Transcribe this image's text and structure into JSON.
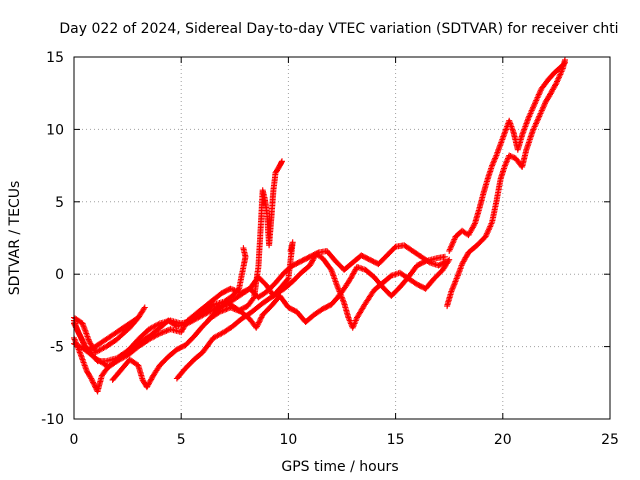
{
  "chart_data": {
    "type": "scatter",
    "title": "Day 022 of 2024, Sidereal Day-to-day VTEC variation (SDTVAR) for receiver chti",
    "xlabel": "GPS time / hours",
    "ylabel": "SDTVAR / TECUs",
    "xlim": [
      0,
      25
    ],
    "ylim": [
      -10,
      15
    ],
    "xticks": [
      0,
      5,
      10,
      15,
      20,
      25
    ],
    "yticks": [
      -10,
      -5,
      0,
      5,
      10,
      15
    ],
    "grid": true,
    "marker": "+",
    "series_color": "#ff0000",
    "traces": [
      {
        "name": "trace-1",
        "points": [
          [
            0.0,
            -3.0
          ],
          [
            0.4,
            -3.4
          ],
          [
            0.7,
            -4.6
          ],
          [
            1.0,
            -5.4
          ],
          [
            1.5,
            -5.0
          ],
          [
            2.0,
            -4.5
          ],
          [
            2.6,
            -3.7
          ],
          [
            3.0,
            -3.0
          ],
          [
            3.3,
            -2.3
          ],
          [
            3.0,
            -3.0
          ],
          [
            2.5,
            -3.5
          ],
          [
            2.0,
            -4.0
          ],
          [
            1.4,
            -4.6
          ],
          [
            1.0,
            -5.0
          ],
          [
            0.6,
            -5.3
          ],
          [
            0.3,
            -4.3
          ],
          [
            0.0,
            -3.4
          ]
        ]
      },
      {
        "name": "trace-2",
        "points": [
          [
            0.0,
            -4.8
          ],
          [
            0.5,
            -5.2
          ],
          [
            1.0,
            -5.8
          ],
          [
            1.6,
            -6.4
          ],
          [
            2.0,
            -6.0
          ],
          [
            2.5,
            -5.3
          ],
          [
            3.0,
            -4.5
          ],
          [
            3.5,
            -3.8
          ],
          [
            4.0,
            -3.4
          ],
          [
            4.5,
            -3.2
          ],
          [
            5.0,
            -3.4
          ],
          [
            5.5,
            -3.2
          ],
          [
            6.0,
            -2.6
          ],
          [
            6.5,
            -2.1
          ],
          [
            7.0,
            -1.9
          ],
          [
            7.4,
            -1.5
          ],
          [
            7.7,
            -1.0
          ],
          [
            7.9,
            0.5
          ],
          [
            8.0,
            1.2
          ],
          [
            7.9,
            1.8
          ]
        ]
      },
      {
        "name": "trace-3",
        "points": [
          [
            0.0,
            -3.2
          ],
          [
            0.2,
            -4.0
          ],
          [
            0.5,
            -4.9
          ],
          [
            0.8,
            -5.5
          ],
          [
            1.1,
            -6.0
          ],
          [
            1.5,
            -6.0
          ],
          [
            2.0,
            -5.8
          ],
          [
            2.5,
            -5.3
          ],
          [
            3.0,
            -4.8
          ],
          [
            3.5,
            -4.3
          ],
          [
            4.0,
            -3.7
          ],
          [
            4.4,
            -3.2
          ],
          [
            4.8,
            -3.6
          ],
          [
            5.3,
            -3.4
          ],
          [
            5.8,
            -3.0
          ],
          [
            6.3,
            -2.6
          ],
          [
            6.8,
            -2.2
          ],
          [
            7.2,
            -2.0
          ],
          [
            7.7,
            -2.5
          ],
          [
            8.1,
            -2.2
          ],
          [
            8.4,
            -1.6
          ],
          [
            8.6,
            0.5
          ],
          [
            8.7,
            3.0
          ],
          [
            8.8,
            5.8
          ],
          [
            8.9,
            5.2
          ],
          [
            9.0,
            4.2
          ],
          [
            9.1,
            2.0
          ],
          [
            9.2,
            3.8
          ],
          [
            9.3,
            5.8
          ],
          [
            9.4,
            7.0
          ],
          [
            9.6,
            7.5
          ],
          [
            9.7,
            7.8
          ]
        ]
      },
      {
        "name": "trace-4",
        "points": [
          [
            0.0,
            -4.4
          ],
          [
            0.3,
            -5.5
          ],
          [
            0.6,
            -6.7
          ],
          [
            0.8,
            -7.2
          ],
          [
            1.1,
            -8.1
          ],
          [
            1.3,
            -7.0
          ],
          [
            1.6,
            -6.4
          ],
          [
            2.0,
            -6.0
          ],
          [
            2.5,
            -5.6
          ],
          [
            3.0,
            -5.0
          ],
          [
            3.5,
            -4.5
          ],
          [
            4.0,
            -4.1
          ],
          [
            4.5,
            -3.8
          ],
          [
            5.0,
            -4.0
          ],
          [
            5.3,
            -3.2
          ],
          [
            5.8,
            -2.6
          ],
          [
            6.3,
            -2.0
          ],
          [
            6.9,
            -1.3
          ],
          [
            7.3,
            -1.0
          ],
          [
            7.8,
            -1.3
          ],
          [
            8.2,
            -1.0
          ],
          [
            8.6,
            -0.2
          ],
          [
            9.0,
            -0.8
          ],
          [
            9.3,
            -1.5
          ],
          [
            9.6,
            -1.0
          ],
          [
            10.0,
            -0.3
          ],
          [
            10.2,
            2.2
          ],
          [
            10.1,
            1.6
          ]
        ]
      },
      {
        "name": "trace-5",
        "points": [
          [
            1.8,
            -7.3
          ],
          [
            2.2,
            -6.6
          ],
          [
            2.6,
            -5.9
          ],
          [
            3.0,
            -6.3
          ],
          [
            3.2,
            -7.3
          ],
          [
            3.4,
            -7.8
          ],
          [
            3.7,
            -7.0
          ],
          [
            4.0,
            -6.3
          ],
          [
            4.4,
            -5.7
          ],
          [
            4.8,
            -5.2
          ],
          [
            5.2,
            -4.9
          ],
          [
            5.6,
            -4.3
          ],
          [
            6.0,
            -3.6
          ],
          [
            6.4,
            -3.0
          ],
          [
            6.8,
            -2.6
          ],
          [
            7.3,
            -2.3
          ],
          [
            7.8,
            -2.6
          ],
          [
            8.2,
            -3.1
          ],
          [
            8.5,
            -3.7
          ],
          [
            8.8,
            -2.8
          ],
          [
            9.2,
            -2.2
          ],
          [
            9.6,
            -1.5
          ],
          [
            10.0,
            -2.3
          ],
          [
            10.4,
            -2.6
          ],
          [
            10.8,
            -3.3
          ],
          [
            11.2,
            -2.8
          ],
          [
            11.6,
            -2.4
          ],
          [
            12.0,
            -2.1
          ],
          [
            12.3,
            -1.6
          ],
          [
            12.6,
            -1.0
          ],
          [
            12.9,
            -0.3
          ],
          [
            13.2,
            0.5
          ],
          [
            13.6,
            0.3
          ],
          [
            14.0,
            -0.2
          ],
          [
            14.4,
            -0.9
          ],
          [
            14.8,
            -1.5
          ],
          [
            15.2,
            -0.9
          ],
          [
            15.6,
            -0.2
          ],
          [
            16.0,
            0.6
          ],
          [
            16.4,
            0.9
          ],
          [
            16.9,
            1.1
          ],
          [
            17.3,
            1.2
          ]
        ]
      },
      {
        "name": "trace-6",
        "points": [
          [
            4.8,
            -7.2
          ],
          [
            5.2,
            -6.5
          ],
          [
            5.6,
            -5.9
          ],
          [
            6.0,
            -5.4
          ],
          [
            6.5,
            -4.4
          ],
          [
            7.0,
            -4.0
          ],
          [
            7.4,
            -3.6
          ],
          [
            7.8,
            -3.1
          ],
          [
            8.3,
            -2.6
          ],
          [
            8.8,
            -2.0
          ],
          [
            9.3,
            -1.5
          ],
          [
            9.8,
            -1.0
          ],
          [
            10.2,
            -0.5
          ],
          [
            10.6,
            0.1
          ],
          [
            11.0,
            0.6
          ],
          [
            11.3,
            1.4
          ],
          [
            11.6,
            1.1
          ],
          [
            12.0,
            0.3
          ],
          [
            12.3,
            -0.9
          ],
          [
            12.6,
            -2.0
          ],
          [
            12.8,
            -3.0
          ],
          [
            13.0,
            -3.7
          ],
          [
            13.2,
            -3.0
          ],
          [
            13.6,
            -2.0
          ],
          [
            14.0,
            -1.1
          ],
          [
            14.4,
            -0.6
          ],
          [
            14.8,
            -0.1
          ],
          [
            15.2,
            0.1
          ],
          [
            15.6,
            -0.3
          ],
          [
            16.0,
            -0.7
          ],
          [
            16.4,
            -1.0
          ],
          [
            16.8,
            -0.3
          ],
          [
            17.2,
            0.3
          ],
          [
            17.5,
            1.0
          ]
        ]
      },
      {
        "name": "trace-7",
        "points": [
          [
            6.2,
            -3.3
          ],
          [
            6.6,
            -2.6
          ],
          [
            7.0,
            -2.1
          ],
          [
            7.4,
            -1.8
          ],
          [
            7.8,
            -1.4
          ],
          [
            8.2,
            -1.0
          ],
          [
            8.6,
            -1.6
          ],
          [
            9.0,
            -1.2
          ],
          [
            9.4,
            -0.6
          ],
          [
            9.8,
            0.1
          ],
          [
            10.2,
            0.6
          ],
          [
            10.6,
            0.9
          ],
          [
            11.0,
            1.2
          ],
          [
            11.4,
            1.5
          ],
          [
            11.8,
            1.6
          ],
          [
            12.2,
            0.9
          ],
          [
            12.6,
            0.3
          ],
          [
            13.0,
            0.8
          ],
          [
            13.4,
            1.3
          ],
          [
            13.8,
            1.0
          ],
          [
            14.2,
            0.7
          ],
          [
            14.6,
            1.3
          ],
          [
            15.0,
            1.9
          ],
          [
            15.4,
            2.0
          ],
          [
            15.8,
            1.6
          ],
          [
            16.2,
            1.2
          ],
          [
            16.6,
            0.8
          ],
          [
            17.0,
            0.6
          ],
          [
            17.4,
            0.9
          ]
        ]
      },
      {
        "name": "trace-8",
        "points": [
          [
            17.4,
            -2.2
          ],
          [
            17.6,
            -1.2
          ],
          [
            17.9,
            -0.1
          ],
          [
            18.1,
            0.7
          ],
          [
            18.4,
            1.5
          ],
          [
            18.8,
            2.0
          ],
          [
            19.2,
            2.6
          ],
          [
            19.5,
            3.6
          ],
          [
            19.7,
            5.0
          ],
          [
            19.9,
            6.6
          ],
          [
            20.1,
            7.5
          ],
          [
            20.3,
            8.2
          ],
          [
            20.6,
            8.0
          ],
          [
            20.9,
            7.4
          ],
          [
            21.1,
            8.6
          ],
          [
            21.4,
            9.9
          ],
          [
            21.7,
            10.9
          ],
          [
            22.0,
            11.9
          ],
          [
            22.2,
            12.4
          ],
          [
            22.5,
            13.2
          ],
          [
            22.8,
            14.2
          ],
          [
            22.9,
            14.8
          ]
        ]
      },
      {
        "name": "trace-9",
        "points": [
          [
            17.5,
            1.6
          ],
          [
            17.8,
            2.6
          ],
          [
            18.1,
            3.0
          ],
          [
            18.4,
            2.7
          ],
          [
            18.7,
            3.5
          ],
          [
            18.9,
            4.5
          ],
          [
            19.1,
            5.6
          ],
          [
            19.3,
            6.6
          ],
          [
            19.5,
            7.5
          ],
          [
            19.7,
            8.2
          ],
          [
            19.9,
            9.0
          ],
          [
            20.1,
            9.8
          ],
          [
            20.3,
            10.6
          ],
          [
            20.5,
            9.8
          ],
          [
            20.7,
            8.6
          ],
          [
            20.9,
            9.6
          ],
          [
            21.2,
            10.8
          ],
          [
            21.5,
            11.8
          ],
          [
            21.8,
            12.8
          ],
          [
            22.1,
            13.4
          ],
          [
            22.4,
            13.9
          ],
          [
            22.7,
            14.3
          ],
          [
            22.9,
            14.6
          ]
        ]
      }
    ]
  }
}
